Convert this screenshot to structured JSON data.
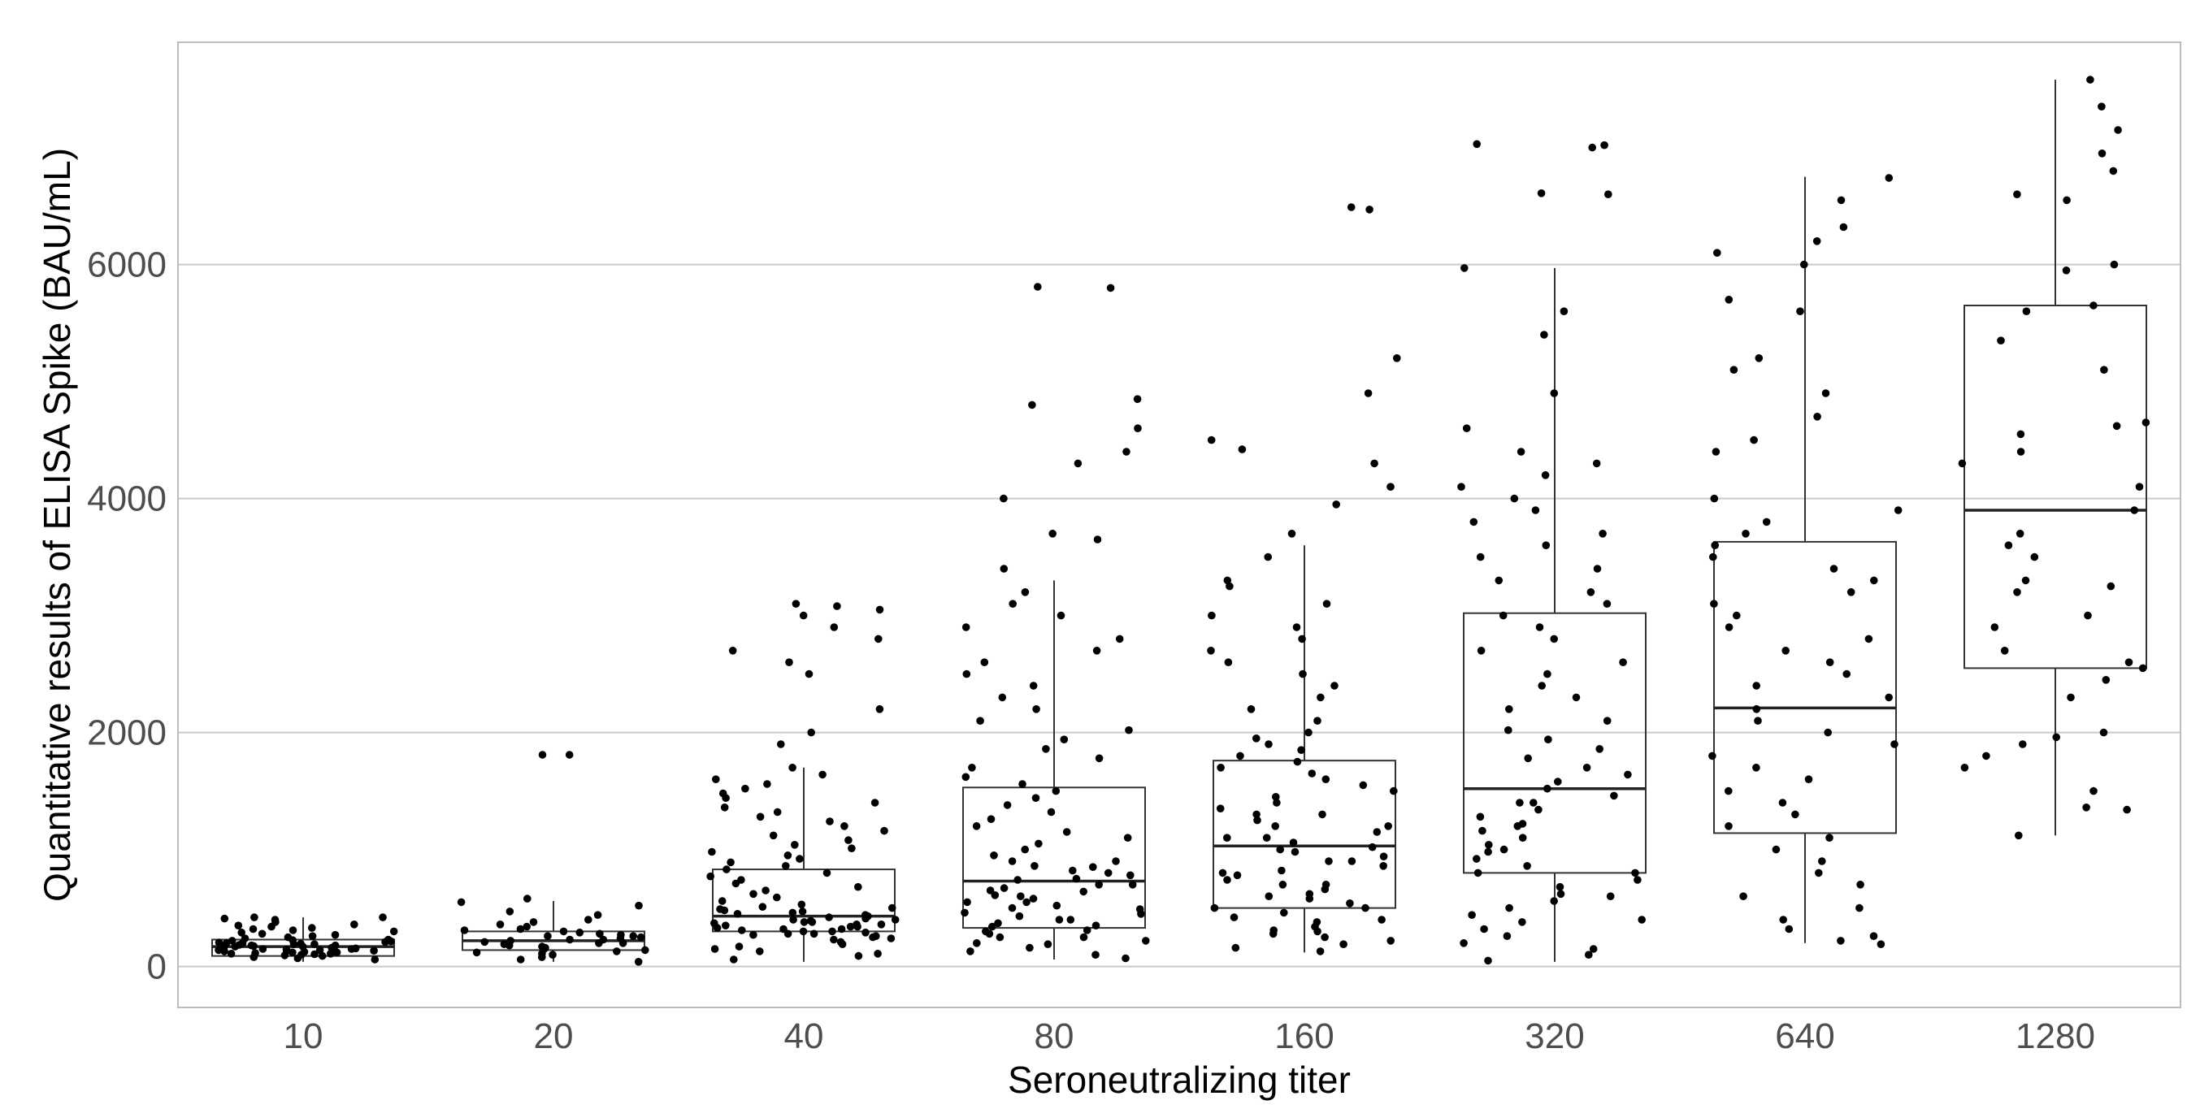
{
  "chart_data": {
    "type": "box+jitter",
    "title": "",
    "xlabel": "Seroneutralizing titer",
    "ylabel": "Quantitative results of ELISA Spike (BAU/mL)",
    "categories": [
      "10",
      "20",
      "40",
      "80",
      "160",
      "320",
      "640",
      "1280"
    ],
    "ylim": [
      -350,
      7900
    ],
    "yticks": [
      0,
      2000,
      4000,
      6000
    ],
    "grid": "horizontal major lines",
    "legend": "none",
    "boxes": [
      {
        "category": "10",
        "whisker_low": 40,
        "q1": 90,
        "median": 170,
        "q3": 230,
        "whisker_high": 420
      },
      {
        "category": "20",
        "whisker_low": 40,
        "q1": 140,
        "median": 220,
        "q3": 300,
        "whisker_high": 560
      },
      {
        "category": "40",
        "whisker_low": 40,
        "q1": 300,
        "median": 430,
        "q3": 830,
        "whisker_high": 1700
      },
      {
        "category": "80",
        "whisker_low": 60,
        "q1": 330,
        "median": 730,
        "q3": 1530,
        "whisker_high": 3300
      },
      {
        "category": "160",
        "whisker_low": 120,
        "q1": 500,
        "median": 1030,
        "q3": 1760,
        "whisker_high": 3600
      },
      {
        "category": "320",
        "whisker_low": 40,
        "q1": 800,
        "median": 1520,
        "q3": 3020,
        "whisker_high": 5970
      },
      {
        "category": "640",
        "whisker_low": 200,
        "q1": 1140,
        "median": 2210,
        "q3": 3630,
        "whisker_high": 6750
      },
      {
        "category": "1280",
        "whisker_low": 1120,
        "q1": 2550,
        "median": 3900,
        "q3": 5650,
        "whisker_high": 7580
      }
    ],
    "points": [
      {
        "category": "10",
        "values": [
          100,
          105,
          110,
          115,
          120,
          125,
          130,
          135,
          140,
          145,
          150,
          155,
          160,
          165,
          170,
          175,
          180,
          185,
          190,
          195,
          200,
          205,
          210,
          215,
          220,
          225,
          230,
          240,
          250,
          260,
          270,
          280,
          290,
          300,
          310,
          320,
          330,
          340,
          350,
          360,
          380,
          400,
          410,
          420,
          420,
          60,
          70,
          80,
          90,
          95,
          150,
          160,
          170,
          180,
          190,
          200,
          140,
          130,
          120,
          110
        ]
      },
      {
        "category": "20",
        "values": [
          40,
          60,
          80,
          100,
          110,
          130,
          150,
          170,
          180,
          190,
          200,
          210,
          220,
          230,
          240,
          250,
          260,
          270,
          280,
          290,
          300,
          310,
          320,
          340,
          360,
          380,
          400,
          440,
          470,
          520,
          550,
          580,
          1810,
          1810,
          120,
          140,
          160,
          200,
          230,
          260
        ]
      },
      {
        "category": "40",
        "values": [
          60,
          90,
          110,
          130,
          150,
          170,
          190,
          210,
          230,
          250,
          270,
          290,
          310,
          330,
          350,
          370,
          390,
          410,
          430,
          450,
          470,
          490,
          510,
          530,
          560,
          590,
          620,
          650,
          680,
          710,
          740,
          770,
          800,
          830,
          860,
          890,
          920,
          950,
          980,
          1010,
          1040,
          1080,
          1120,
          1160,
          1200,
          1240,
          1280,
          1320,
          1360,
          1400,
          1440,
          1480,
          1520,
          1560,
          1600,
          1640,
          1700,
          1900,
          2000,
          2200,
          2500,
          2600,
          2700,
          2800,
          2900,
          3000,
          3050,
          3080,
          3100,
          240,
          260,
          280,
          300,
          320,
          340,
          360,
          380,
          400,
          420,
          440,
          460,
          480,
          500,
          280,
          300,
          320,
          340,
          360,
          380,
          400
        ]
      },
      {
        "category": "80",
        "values": [
          70,
          100,
          130,
          160,
          190,
          220,
          250,
          280,
          310,
          340,
          370,
          400,
          430,
          460,
          490,
          520,
          550,
          580,
          610,
          640,
          670,
          700,
          740,
          780,
          820,
          860,
          900,
          950,
          1000,
          1050,
          1100,
          1150,
          1200,
          1260,
          1320,
          1380,
          1440,
          1500,
          1560,
          1620,
          1700,
          1780,
          1860,
          1940,
          2020,
          2100,
          2200,
          2300,
          2400,
          2500,
          2600,
          2700,
          2800,
          2900,
          3000,
          3100,
          3200,
          3400,
          3650,
          3700,
          4000,
          4300,
          4400,
          4600,
          4800,
          4850,
          5800,
          5810,
          200,
          250,
          300,
          350,
          400,
          450,
          500,
          550,
          600,
          650,
          700,
          750,
          800,
          850,
          900
        ]
      },
      {
        "category": "160",
        "values": [
          130,
          160,
          190,
          220,
          250,
          280,
          310,
          340,
          380,
          420,
          460,
          500,
          540,
          580,
          620,
          660,
          700,
          740,
          780,
          820,
          860,
          900,
          940,
          980,
          1020,
          1060,
          1100,
          1150,
          1200,
          1250,
          1300,
          1350,
          1400,
          1450,
          1500,
          1550,
          1600,
          1650,
          1700,
          1750,
          1800,
          1850,
          1900,
          1950,
          2000,
          2100,
          2200,
          2300,
          2400,
          2500,
          2600,
          2700,
          2800,
          2900,
          3000,
          3100,
          3250,
          3300,
          3500,
          3700,
          3950,
          4100,
          4300,
          4420,
          4500,
          4900,
          5200,
          6470,
          6490,
          300,
          400,
          500,
          600,
          700,
          800,
          900,
          1000,
          1100,
          1200,
          1300
        ]
      },
      {
        "category": "320",
        "values": [
          50,
          100,
          150,
          200,
          260,
          320,
          380,
          440,
          500,
          560,
          620,
          680,
          740,
          800,
          860,
          920,
          980,
          1040,
          1100,
          1160,
          1220,
          1280,
          1340,
          1400,
          1460,
          1520,
          1580,
          1640,
          1700,
          1780,
          1860,
          1940,
          2020,
          2100,
          2200,
          2300,
          2400,
          2500,
          2600,
          2700,
          2800,
          2900,
          3000,
          3100,
          3200,
          3300,
          3400,
          3500,
          3600,
          3700,
          3800,
          3900,
          4000,
          4100,
          4200,
          4300,
          4400,
          4600,
          4900,
          5400,
          5600,
          5970,
          6600,
          6610,
          7000,
          7020,
          7030,
          400,
          600,
          800,
          1000,
          1200,
          1400
        ]
      },
      {
        "category": "640",
        "values": [
          190,
          220,
          260,
          320,
          400,
          500,
          600,
          700,
          800,
          900,
          1000,
          1100,
          1200,
          1300,
          1400,
          1500,
          1600,
          1700,
          1800,
          1900,
          2000,
          2100,
          2200,
          2300,
          2400,
          2500,
          2600,
          2700,
          2800,
          2900,
          3000,
          3100,
          3200,
          3300,
          3400,
          3500,
          3600,
          3700,
          3800,
          3900,
          4000,
          4400,
          4500,
          4700,
          4900,
          5100,
          5200,
          5600,
          5700,
          6000,
          6100,
          6200,
          6320,
          6550,
          6740
        ]
      },
      {
        "category": "1280",
        "values": [
          1120,
          1340,
          1360,
          1500,
          1700,
          1800,
          1900,
          1960,
          2000,
          2300,
          2450,
          2550,
          2600,
          2700,
          2900,
          3000,
          3200,
          3250,
          3300,
          3500,
          3600,
          3700,
          3900,
          4100,
          4300,
          4400,
          4550,
          4620,
          4650,
          5100,
          5350,
          5600,
          5650,
          5950,
          6000,
          6550,
          6600,
          6800,
          6950,
          7150,
          7350,
          7580
        ]
      }
    ]
  }
}
